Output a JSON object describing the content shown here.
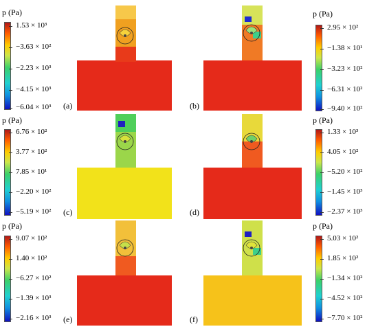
{
  "unit_label": "p (Pa)",
  "panels": [
    {
      "id": "a",
      "label": "(a)",
      "ticks": [
        "1.53 × 10³",
        "−3.63 × 10²",
        "−2.23 × 10³",
        "−4.15 × 10³",
        "−6.04 × 10³"
      ]
    },
    {
      "id": "b",
      "label": "(b)",
      "ticks": [
        "2.95 × 10²",
        "−1.38 × 10¹",
        "−3.23 × 10²",
        "−6.31 × 10²",
        "−9.40 × 10²"
      ]
    },
    {
      "id": "c",
      "label": "(c)",
      "ticks": [
        "6.76 × 10²",
        "3.77 × 10²",
        "7.85 × 10¹",
        "−2.20 × 10²",
        "−5.19 × 10²"
      ]
    },
    {
      "id": "d",
      "label": "(d)",
      "ticks": [
        "1.33 × 10³",
        "4.05 × 10²",
        "−5.20 × 10²",
        "−1.45 × 10³",
        "−2.37 × 10³"
      ]
    },
    {
      "id": "e",
      "label": "(e)",
      "ticks": [
        "9.07 × 10²",
        "1.40 × 10²",
        "−6.27 × 10²",
        "−1.39 × 10³",
        "−2.16 × 10³"
      ]
    },
    {
      "id": "f",
      "label": "(f)",
      "ticks": [
        "5.03 × 10²",
        "1.85 × 10²",
        "−1.34 × 10²",
        "−4.52 × 10²",
        "−7.70 × 10²"
      ]
    }
  ]
}
